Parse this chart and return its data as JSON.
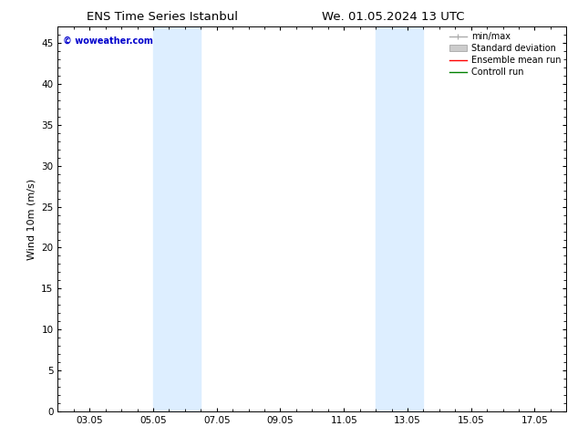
{
  "title_left": "ENS Time Series Istanbul",
  "title_right": "We. 01.05.2024 13 UTC",
  "ylabel": "Wind 10m (m/s)",
  "ylim": [
    0,
    47
  ],
  "yticks": [
    0,
    5,
    10,
    15,
    20,
    25,
    30,
    35,
    40,
    45
  ],
  "xtick_labels": [
    "03.05",
    "05.05",
    "07.05",
    "09.05",
    "11.05",
    "13.05",
    "15.05",
    "17.05"
  ],
  "xtick_positions": [
    2,
    4,
    6,
    8,
    10,
    12,
    14,
    16
  ],
  "xlim": [
    1,
    17
  ],
  "shaded_regions": [
    {
      "xmin": 4.0,
      "xmax": 5.5,
      "color": "#ddeeff"
    },
    {
      "xmin": 11.0,
      "xmax": 12.5,
      "color": "#ddeeff"
    }
  ],
  "watermark_text": "© woweather.com",
  "watermark_color": "#0000cc",
  "legend_entries": [
    {
      "label": "min/max",
      "color": "#aaaaaa",
      "lw": 1.0,
      "style": "minmax"
    },
    {
      "label": "Standard deviation",
      "color": "#cccccc",
      "lw": 5,
      "style": "band"
    },
    {
      "label": "Ensemble mean run",
      "color": "#ff0000",
      "lw": 1.0,
      "style": "line"
    },
    {
      "label": "Controll run",
      "color": "#008000",
      "lw": 1.0,
      "style": "line"
    }
  ],
  "bg_color": "#ffffff",
  "plot_bg_color": "#ffffff",
  "tick_color": "#000000",
  "spine_color": "#000000",
  "title_fontsize": 9.5,
  "label_fontsize": 8,
  "tick_fontsize": 7.5,
  "legend_fontsize": 7,
  "watermark_fontsize": 7
}
